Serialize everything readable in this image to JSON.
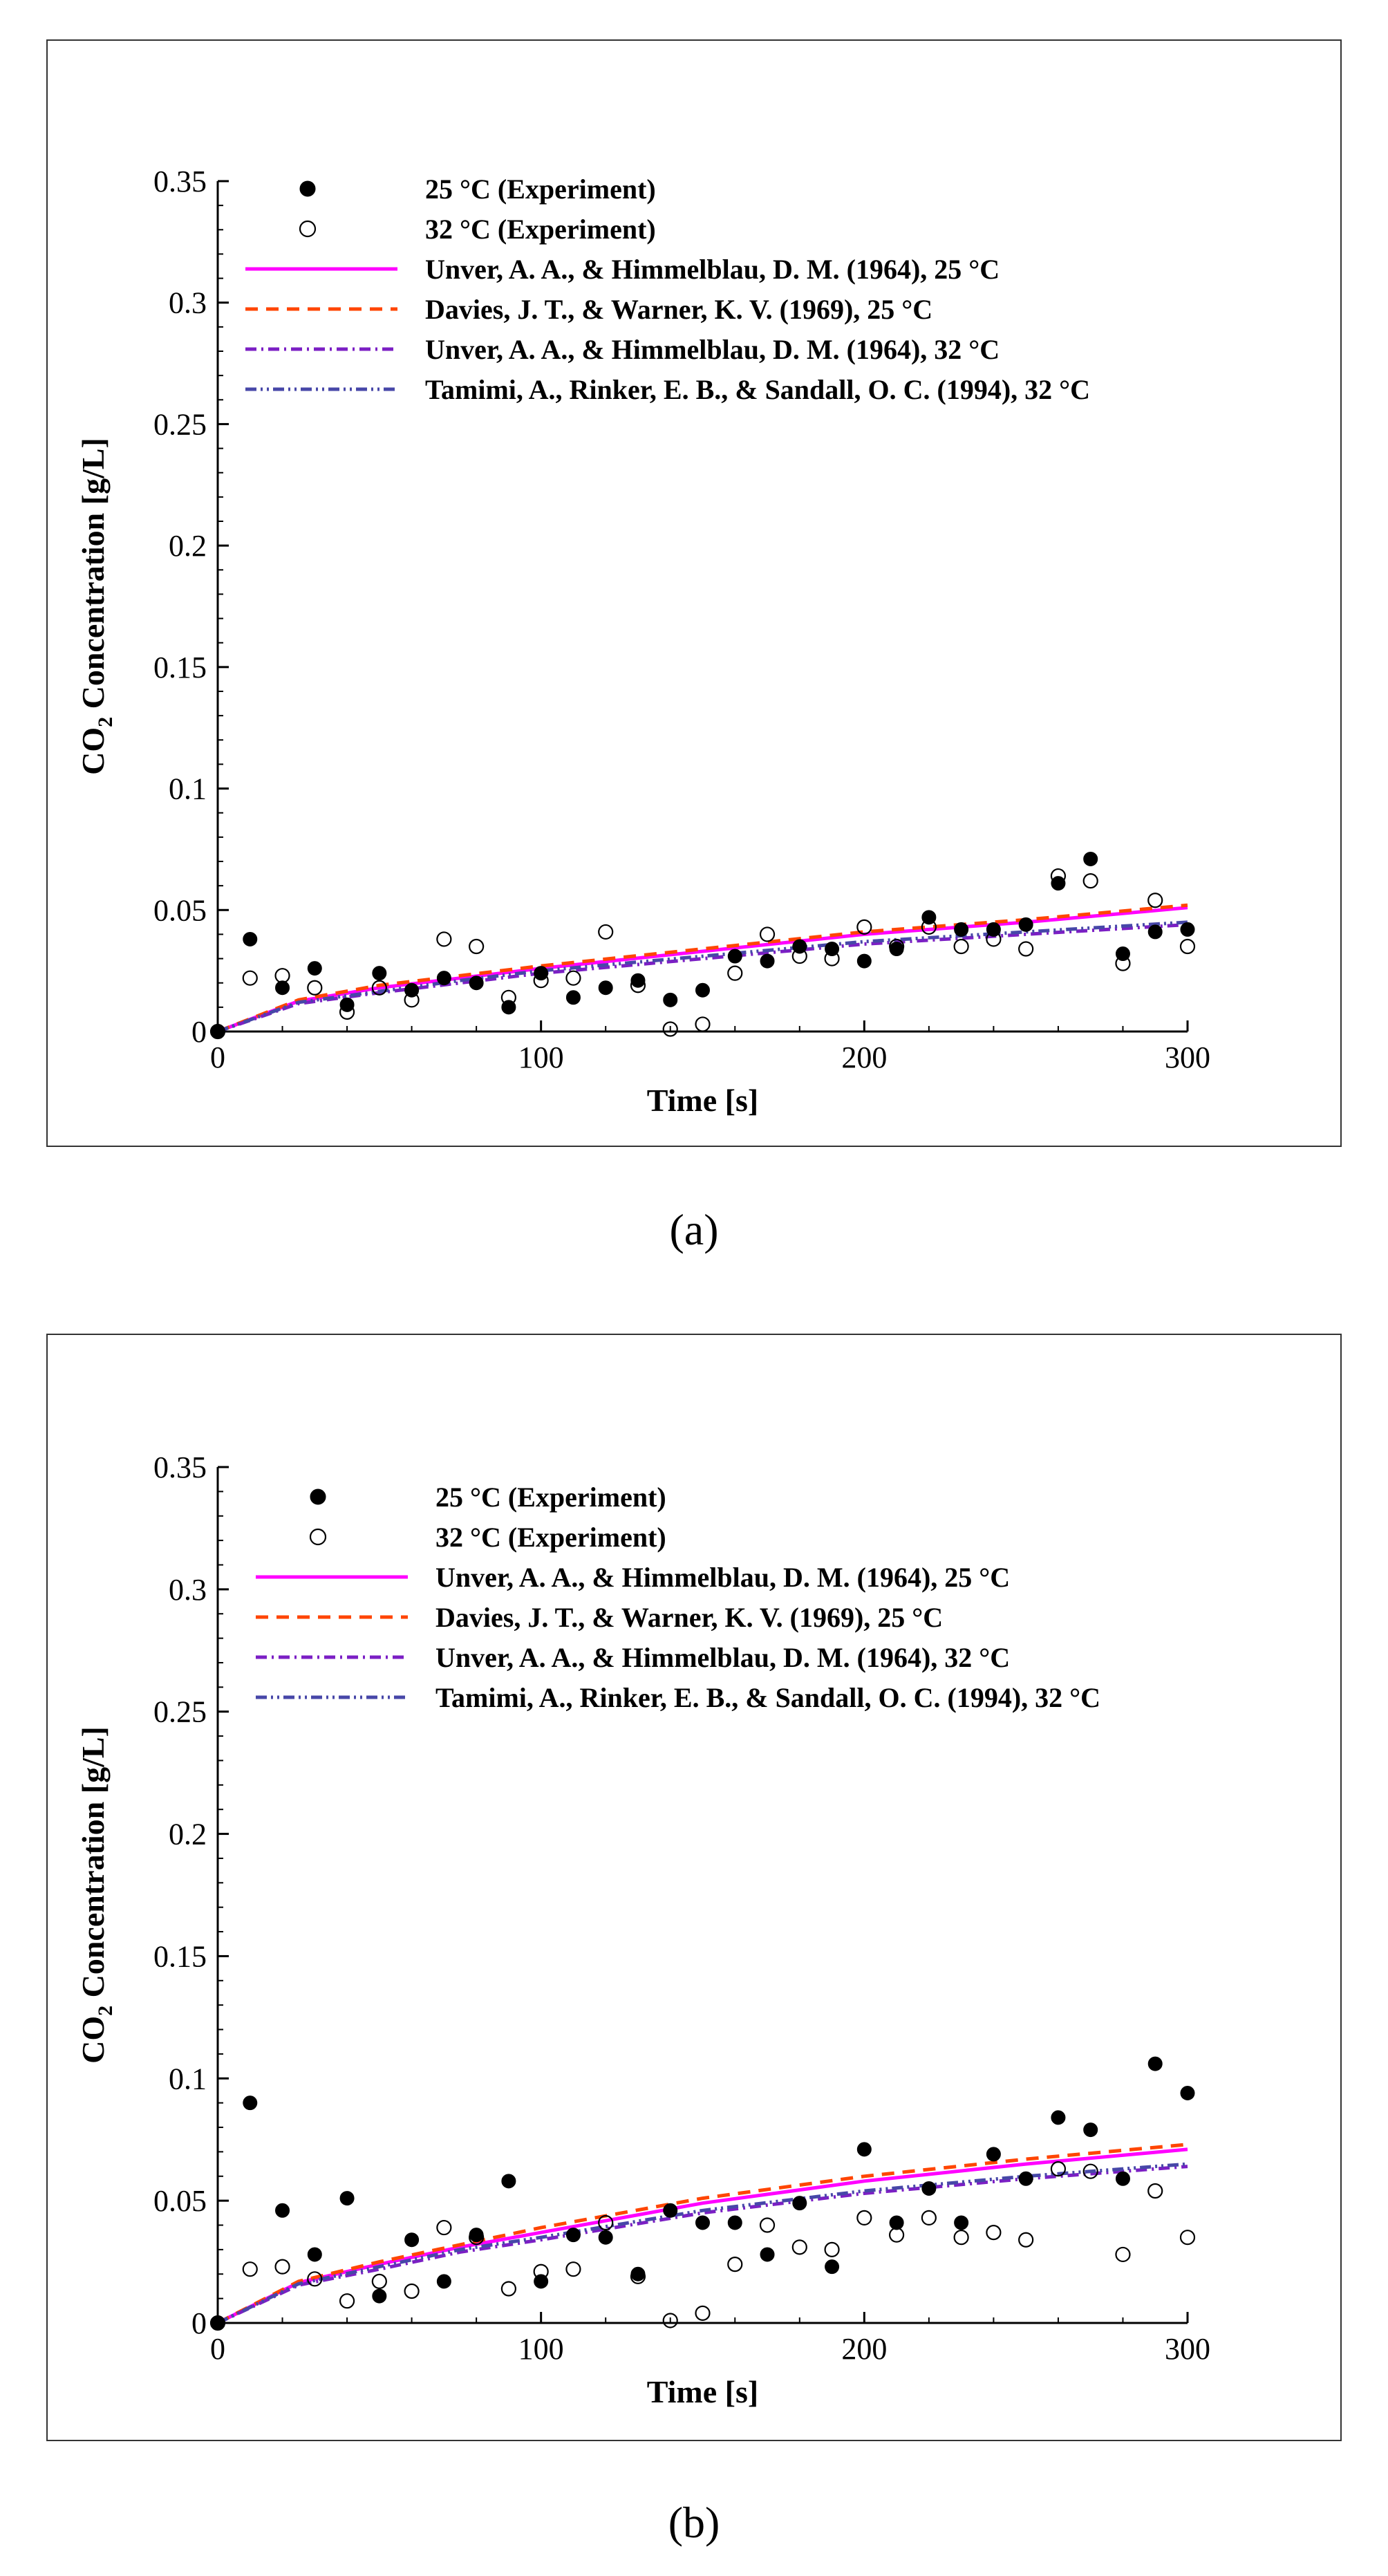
{
  "chart_data": [
    {
      "type": "line",
      "caption": "(a)",
      "xlabel": "Time [s]",
      "ylabel_main": "CO",
      "ylabel_sub": "2",
      "ylabel_tail": " Concentration [g/L]",
      "xlim": [
        0,
        300
      ],
      "ylim": [
        0,
        0.35
      ],
      "xticks": [
        {
          "v": 0,
          "label": "0"
        },
        {
          "v": 100,
          "label": "100"
        },
        {
          "v": 200,
          "label": "200"
        },
        {
          "v": 300,
          "label": "300"
        }
      ],
      "yticks": [
        {
          "v": 0,
          "label": "0"
        },
        {
          "v": 0.05,
          "label": "0.05"
        },
        {
          "v": 0.1,
          "label": "0.1"
        },
        {
          "v": 0.15,
          "label": "0.15"
        },
        {
          "v": 0.2,
          "label": "0.2"
        },
        {
          "v": 0.25,
          "label": "0.25"
        },
        {
          "v": 0.3,
          "label": "0.3"
        },
        {
          "v": 0.35,
          "label": "0.35"
        }
      ],
      "scatter": [
        {
          "name": "25 °C (Experiment)",
          "marker": "filled",
          "x": [
            0,
            10,
            20,
            30,
            40,
            50,
            60,
            70,
            80,
            90,
            100,
            110,
            120,
            130,
            140,
            150,
            160,
            170,
            180,
            190,
            200,
            210,
            220,
            230,
            240,
            250,
            260,
            270,
            280,
            290,
            300
          ],
          "y": [
            0,
            0.038,
            0.018,
            0.026,
            0.011,
            0.024,
            0.017,
            0.022,
            0.02,
            0.01,
            0.024,
            0.014,
            0.018,
            0.021,
            0.013,
            0.017,
            0.031,
            0.029,
            0.035,
            0.034,
            0.029,
            0.034,
            0.047,
            0.042,
            0.042,
            0.044,
            0.061,
            0.071,
            0.032,
            0.041,
            0.042
          ]
        },
        {
          "name": "32 °C (Experiment)",
          "marker": "open",
          "x": [
            0,
            10,
            20,
            30,
            40,
            50,
            60,
            70,
            80,
            90,
            100,
            110,
            120,
            130,
            140,
            150,
            160,
            170,
            180,
            190,
            200,
            210,
            220,
            230,
            240,
            250,
            260,
            270,
            280,
            290,
            300
          ],
          "y": [
            0,
            0.022,
            0.023,
            0.018,
            0.008,
            0.018,
            0.013,
            0.038,
            0.035,
            0.014,
            0.021,
            0.022,
            0.041,
            0.019,
            0.001,
            0.003,
            0.024,
            0.04,
            0.031,
            0.03,
            0.043,
            0.035,
            0.043,
            0.035,
            0.038,
            0.034,
            0.064,
            0.062,
            0.028,
            0.054,
            0.035
          ]
        }
      ],
      "lines": [
        {
          "name": "Unver, A. A., & Himmelblau, D. M. (1964), 25 °C",
          "color": "#ff00ff",
          "dash": "none",
          "x": [
            0,
            25,
            50,
            75,
            100,
            150,
            200,
            250,
            300
          ],
          "y": [
            0,
            0.0125,
            0.018,
            0.022,
            0.026,
            0.033,
            0.04,
            0.045,
            0.051
          ]
        },
        {
          "name": "Davies, J. T., & Warner, K. V. (1969), 25 °C",
          "color": "#ff4500",
          "dash": "18,12",
          "x": [
            0,
            25,
            50,
            75,
            100,
            150,
            200,
            250,
            300
          ],
          "y": [
            0,
            0.013,
            0.019,
            0.023,
            0.027,
            0.034,
            0.041,
            0.046,
            0.052
          ]
        },
        {
          "name": "Unver, A. A., & Himmelblau, D. M. (1964), 32 °C",
          "color": "#7b1fc4",
          "dash": "16,7,3,7",
          "x": [
            0,
            25,
            50,
            75,
            100,
            150,
            200,
            250,
            300
          ],
          "y": [
            0,
            0.0115,
            0.016,
            0.02,
            0.024,
            0.03,
            0.036,
            0.04,
            0.044
          ]
        },
        {
          "name": "Tamimi, A., Rinker, E. B., & Sandall, O. C. (1994), 32 °C",
          "color": "#4747a8",
          "dash": "16,6,3,6,3,6",
          "x": [
            0,
            25,
            50,
            75,
            100,
            150,
            200,
            250,
            300
          ],
          "y": [
            0,
            0.012,
            0.0165,
            0.021,
            0.025,
            0.031,
            0.037,
            0.041,
            0.045
          ]
        }
      ]
    },
    {
      "type": "line",
      "caption": "(b)",
      "xlabel": "Time [s]",
      "ylabel_main": "CO",
      "ylabel_sub": "2",
      "ylabel_tail": " Concentration [g/L]",
      "xlim": [
        0,
        300
      ],
      "ylim": [
        0,
        0.35
      ],
      "xticks": [
        {
          "v": 0,
          "label": "0"
        },
        {
          "v": 100,
          "label": "100"
        },
        {
          "v": 200,
          "label": "200"
        },
        {
          "v": 300,
          "label": "300"
        }
      ],
      "yticks": [
        {
          "v": 0,
          "label": "0"
        },
        {
          "v": 0.05,
          "label": "0.05"
        },
        {
          "v": 0.1,
          "label": "0.1"
        },
        {
          "v": 0.15,
          "label": "0.15"
        },
        {
          "v": 0.2,
          "label": "0.2"
        },
        {
          "v": 0.25,
          "label": "0.25"
        },
        {
          "v": 0.3,
          "label": "0.3"
        },
        {
          "v": 0.35,
          "label": "0.35"
        }
      ],
      "scatter": [
        {
          "name": "25 °C (Experiment)",
          "marker": "filled",
          "x": [
            0,
            10,
            20,
            30,
            40,
            50,
            60,
            70,
            80,
            90,
            100,
            110,
            120,
            130,
            140,
            150,
            160,
            170,
            180,
            190,
            200,
            210,
            220,
            230,
            240,
            250,
            260,
            270,
            280,
            290,
            300
          ],
          "y": [
            0,
            0.09,
            0.046,
            0.028,
            0.051,
            0.011,
            0.034,
            0.017,
            0.036,
            0.058,
            0.017,
            0.036,
            0.035,
            0.02,
            0.046,
            0.041,
            0.041,
            0.028,
            0.049,
            0.023,
            0.071,
            0.041,
            0.055,
            0.041,
            0.069,
            0.059,
            0.084,
            0.079,
            0.059,
            0.106,
            0.094
          ]
        },
        {
          "name": "32 °C (Experiment)",
          "marker": "open",
          "x": [
            0,
            10,
            20,
            30,
            40,
            50,
            60,
            70,
            80,
            90,
            100,
            110,
            120,
            130,
            140,
            150,
            160,
            170,
            180,
            190,
            200,
            210,
            220,
            230,
            240,
            250,
            260,
            270,
            280,
            290,
            300
          ],
          "y": [
            0,
            0.022,
            0.023,
            0.018,
            0.009,
            0.017,
            0.013,
            0.039,
            0.035,
            0.014,
            0.021,
            0.022,
            0.041,
            0.019,
            0.001,
            0.004,
            0.024,
            0.04,
            0.031,
            0.03,
            0.043,
            0.036,
            0.043,
            0.035,
            0.037,
            0.034,
            0.063,
            0.062,
            0.028,
            0.054,
            0.035
          ]
        }
      ],
      "lines": [
        {
          "name": "Unver, A. A., & Himmelblau, D. M. (1964), 25 °C",
          "color": "#ff00ff",
          "dash": "none",
          "x": [
            0,
            25,
            50,
            75,
            100,
            150,
            200,
            250,
            300
          ],
          "y": [
            0,
            0.0165,
            0.024,
            0.031,
            0.037,
            0.049,
            0.058,
            0.065,
            0.071
          ]
        },
        {
          "name": "Davies, J. T., & Warner, K. V. (1969), 25 °C",
          "color": "#ff4500",
          "dash": "18,12",
          "x": [
            0,
            25,
            50,
            75,
            100,
            150,
            200,
            250,
            300
          ],
          "y": [
            0,
            0.017,
            0.025,
            0.032,
            0.039,
            0.051,
            0.06,
            0.067,
            0.073
          ]
        },
        {
          "name": "Unver, A. A., & Himmelblau, D. M. (1964), 32 °C",
          "color": "#7b1fc4",
          "dash": "16,7,3,7",
          "x": [
            0,
            25,
            50,
            75,
            100,
            150,
            200,
            250,
            300
          ],
          "y": [
            0,
            0.0155,
            0.022,
            0.029,
            0.034,
            0.045,
            0.053,
            0.059,
            0.064
          ]
        },
        {
          "name": "Tamimi, A., Rinker, E. B., & Sandall, O. C. (1994), 32 °C",
          "color": "#4747a8",
          "dash": "16,6,3,6,3,6",
          "x": [
            0,
            25,
            50,
            75,
            100,
            150,
            200,
            250,
            300
          ],
          "y": [
            0,
            0.016,
            0.023,
            0.03,
            0.035,
            0.046,
            0.054,
            0.06,
            0.065
          ]
        }
      ]
    }
  ]
}
